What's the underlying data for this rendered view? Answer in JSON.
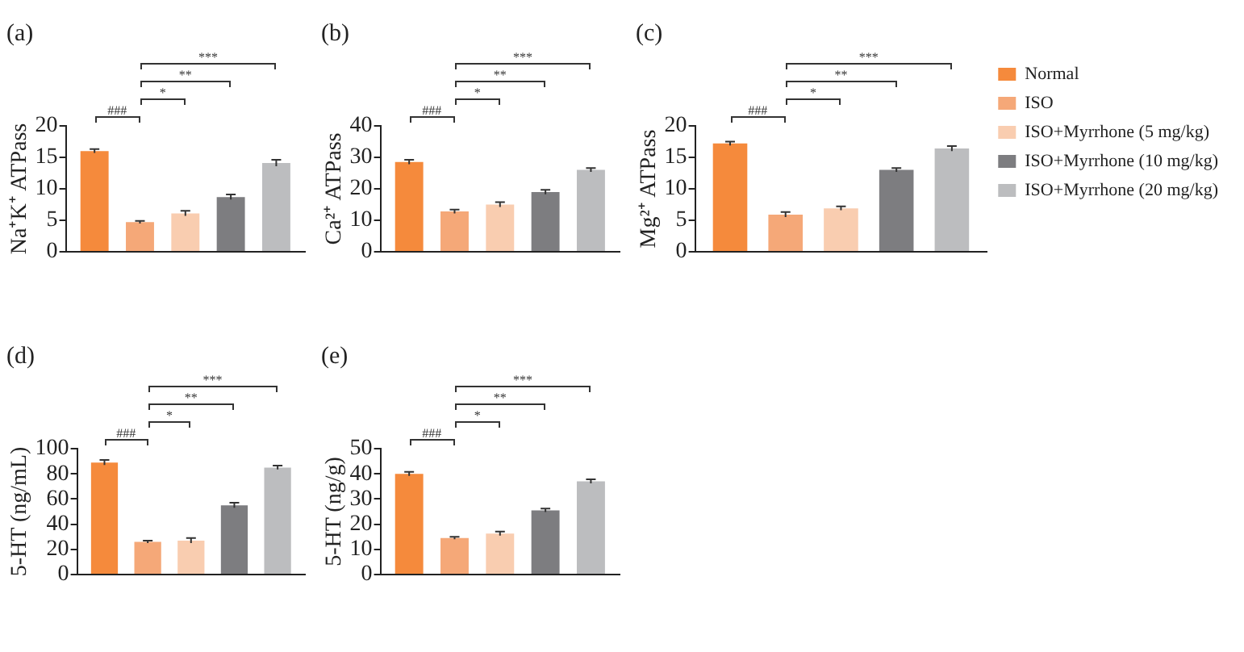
{
  "chart_data": [
    {
      "type": "bar",
      "title": "(a)",
      "ylabel": "Na⁺K⁺ ATPass",
      "categories": [
        null
      ],
      "ylim": [
        0,
        20
      ],
      "yticks": [
        0,
        5,
        10,
        15,
        20
      ],
      "grid": false,
      "tick_labels": "y",
      "annotations": [
        "###",
        "*",
        "**",
        "***"
      ],
      "series": [
        {
          "color": "#f58a3c",
          "values": [
            16.0
          ],
          "errors": [
            0.3
          ]
        },
        {
          "color": "#f5a878",
          "values": [
            4.7
          ],
          "errors": [
            0.2
          ]
        },
        {
          "color": "#f9cdb0",
          "values": [
            6.1
          ],
          "errors": [
            0.4
          ]
        },
        {
          "color": "#7d7d80",
          "values": [
            8.7
          ],
          "errors": [
            0.4
          ]
        },
        {
          "color": "#bcbdbf",
          "values": [
            14.1
          ],
          "errors": [
            0.5
          ]
        }
      ]
    },
    {
      "type": "bar",
      "title": "(b)",
      "ylabel": "Ca²⁺ ATPass",
      "categories": [
        null
      ],
      "ylim": [
        0,
        40
      ],
      "yticks": [
        0,
        10,
        20,
        30,
        40
      ],
      "grid": false,
      "tick_labels": "y",
      "annotations": [
        "###",
        "*",
        "**",
        "***"
      ],
      "series": [
        {
          "color": "#f58a3c",
          "values": [
            28.5
          ],
          "errors": [
            0.7
          ]
        },
        {
          "color": "#f5a878",
          "values": [
            12.8
          ],
          "errors": [
            0.6
          ]
        },
        {
          "color": "#f9cdb0",
          "values": [
            15.0
          ],
          "errors": [
            0.8
          ]
        },
        {
          "color": "#7d7d80",
          "values": [
            19.0
          ],
          "errors": [
            0.7
          ]
        },
        {
          "color": "#bcbdbf",
          "values": [
            26.0
          ],
          "errors": [
            0.6
          ]
        }
      ]
    },
    {
      "type": "bar",
      "title": "(c)",
      "ylabel": "Mg²⁺ ATPass",
      "categories": [
        null
      ],
      "ylim": [
        0,
        20
      ],
      "yticks": [
        0,
        5,
        10,
        15,
        20
      ],
      "grid": false,
      "tick_labels": "y",
      "legend": "right",
      "annotations": [
        "###",
        "*",
        "**",
        "***"
      ],
      "series": [
        {
          "name": "Normal",
          "color": "#f58a3c",
          "values": [
            17.2
          ],
          "errors": [
            0.3
          ]
        },
        {
          "name": "ISO",
          "color": "#f5a878",
          "values": [
            5.9
          ],
          "errors": [
            0.4
          ]
        },
        {
          "name": "ISO+Myrrhone (5 mg/kg)",
          "color": "#f9cdb0",
          "values": [
            6.9
          ],
          "errors": [
            0.3
          ]
        },
        {
          "name": "ISO+Myrrhone (10 mg/kg)",
          "color": "#7d7d80",
          "values": [
            13.0
          ],
          "errors": [
            0.3
          ]
        },
        {
          "name": "ISO+Myrrhone (20 mg/kg)",
          "color": "#bcbdbf",
          "values": [
            16.4
          ],
          "errors": [
            0.4
          ]
        }
      ]
    },
    {
      "type": "bar",
      "title": "(d)",
      "ylabel": "5-HT (ng/mL)",
      "categories": [
        null
      ],
      "ylim": [
        0,
        100
      ],
      "yticks": [
        0,
        20,
        40,
        60,
        80,
        100
      ],
      "grid": false,
      "tick_labels": "y",
      "annotations": [
        "###",
        "*",
        "**",
        "***"
      ],
      "series": [
        {
          "color": "#f58a3c",
          "values": [
            89
          ],
          "errors": [
            2
          ]
        },
        {
          "color": "#f5a878",
          "values": [
            26
          ],
          "errors": [
            1
          ]
        },
        {
          "color": "#f9cdb0",
          "values": [
            27
          ],
          "errors": [
            2
          ]
        },
        {
          "color": "#7d7d80",
          "values": [
            55
          ],
          "errors": [
            2
          ]
        },
        {
          "color": "#bcbdbf",
          "values": [
            85
          ],
          "errors": [
            1.5
          ]
        }
      ]
    },
    {
      "type": "bar",
      "title": "(e)",
      "ylabel": "5-HT (ng/g)",
      "categories": [
        null
      ],
      "ylim": [
        0,
        50
      ],
      "yticks": [
        0,
        10,
        20,
        30,
        40,
        50
      ],
      "grid": false,
      "tick_labels": "y",
      "annotations": [
        "###",
        "*",
        "**",
        "***"
      ],
      "series": [
        {
          "color": "#f58a3c",
          "values": [
            40
          ],
          "errors": [
            0.8
          ]
        },
        {
          "color": "#f5a878",
          "values": [
            14.5
          ],
          "errors": [
            0.5
          ]
        },
        {
          "color": "#f9cdb0",
          "values": [
            16.3
          ],
          "errors": [
            0.8
          ]
        },
        {
          "color": "#7d7d80",
          "values": [
            25.5
          ],
          "errors": [
            0.7
          ]
        },
        {
          "color": "#bcbdbf",
          "values": [
            37
          ],
          "errors": [
            0.8
          ]
        }
      ]
    }
  ]
}
